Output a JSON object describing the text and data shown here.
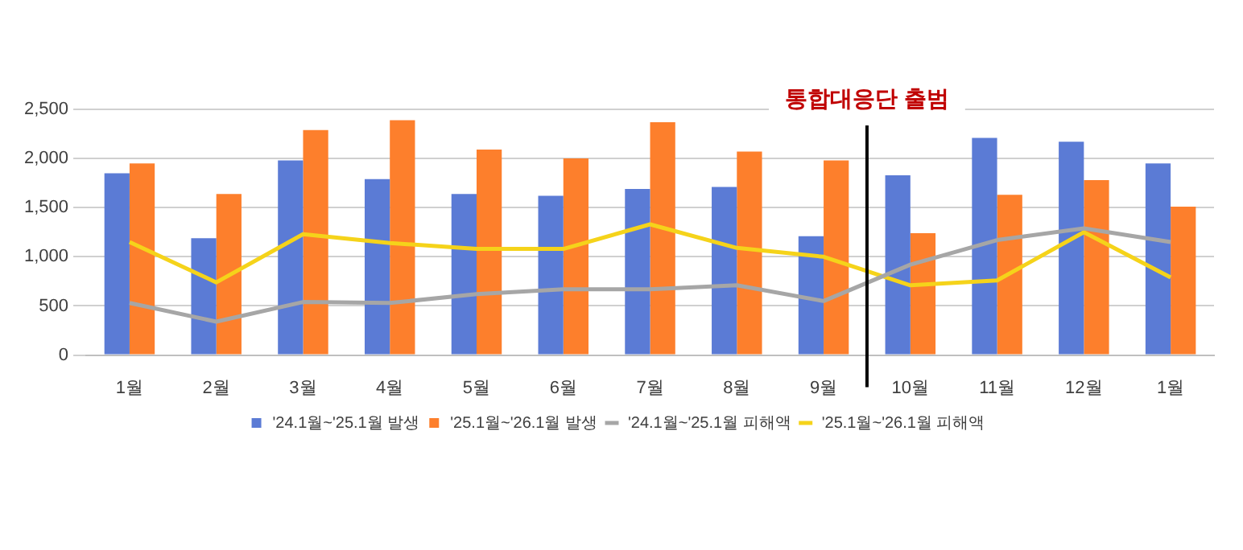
{
  "chart_data": {
    "type": "bar",
    "categories": [
      "1월",
      "2월",
      "3월",
      "4월",
      "5월",
      "6월",
      "7월",
      "8월",
      "9월",
      "10월",
      "11월",
      "12월",
      "1월"
    ],
    "series": [
      {
        "name": "'24.1월~'25.1월 발생",
        "color": "#5b7bd5",
        "values": [
          1850,
          1190,
          1980,
          1790,
          1640,
          1620,
          1690,
          1710,
          1210,
          1830,
          2210,
          2170,
          1950
        ]
      },
      {
        "name": "'25.1월~'26.1월 발생",
        "color": "#fd7f2c",
        "values": [
          1950,
          1640,
          2290,
          2390,
          2090,
          2000,
          2370,
          2070,
          1980,
          1240,
          1630,
          1780,
          1510
        ]
      },
      {
        "name": "'24.1월~'25.1월 피해액",
        "type": "line",
        "color": "#a6a6a6",
        "values": [
          530,
          340,
          540,
          530,
          620,
          670,
          670,
          710,
          550,
          920,
          1170,
          1290,
          1150
        ]
      },
      {
        "name": "'25.1월~'26.1월 피해액",
        "type": "line",
        "color": "#f5d31a",
        "values": [
          1150,
          740,
          1230,
          1140,
          1080,
          1080,
          1330,
          1090,
          1000,
          710,
          760,
          1250,
          790
        ]
      }
    ],
    "ylim": [
      0,
      2500
    ],
    "yticks": [
      0,
      500,
      {
        "value": 1000,
        "label": "1,000"
      },
      {
        "value": 1500,
        "label": "1,500"
      },
      {
        "value": 2000,
        "label": "2,000"
      },
      {
        "value": 2500,
        "label": "2,500"
      }
    ],
    "grid": "y",
    "legend": "bottom",
    "marker": "none",
    "ref_lines": [
      {
        "axis": "x",
        "value": "10월",
        "label": "통합대응단 출범",
        "color": "#000000"
      }
    ]
  }
}
